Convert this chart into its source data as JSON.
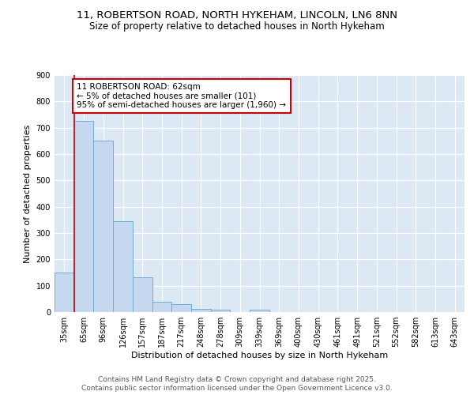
{
  "title_line1": "11, ROBERTSON ROAD, NORTH HYKEHAM, LINCOLN, LN6 8NN",
  "title_line2": "Size of property relative to detached houses in North Hykeham",
  "xlabel": "Distribution of detached houses by size in North Hykeham",
  "ylabel": "Number of detached properties",
  "bar_labels": [
    "35sqm",
    "65sqm",
    "96sqm",
    "126sqm",
    "157sqm",
    "187sqm",
    "217sqm",
    "248sqm",
    "278sqm",
    "309sqm",
    "339sqm",
    "369sqm",
    "400sqm",
    "430sqm",
    "461sqm",
    "491sqm",
    "521sqm",
    "552sqm",
    "582sqm",
    "613sqm",
    "643sqm"
  ],
  "bar_values": [
    150,
    725,
    650,
    345,
    133,
    40,
    30,
    12,
    8,
    0,
    8,
    0,
    0,
    0,
    0,
    0,
    0,
    0,
    0,
    0,
    0
  ],
  "bar_color": "#c5d8f0",
  "bar_edge_color": "#6baed6",
  "annotation_line1": "11 ROBERTSON ROAD: 62sqm",
  "annotation_line2": "← 5% of detached houses are smaller (101)",
  "annotation_line3": "95% of semi-detached houses are larger (1,960) →",
  "annotation_box_facecolor": "#ffffff",
  "annotation_box_edgecolor": "#cc0000",
  "red_line_color": "#cc0000",
  "ylim": [
    0,
    900
  ],
  "yticks": [
    0,
    100,
    200,
    300,
    400,
    500,
    600,
    700,
    800,
    900
  ],
  "fig_bg_color": "#ffffff",
  "plot_bg_color": "#dde8f5",
  "footer_line1": "Contains HM Land Registry data © Crown copyright and database right 2025.",
  "footer_line2": "Contains public sector information licensed under the Open Government Licence v3.0.",
  "title_fontsize": 9.5,
  "subtitle_fontsize": 8.5,
  "axis_label_fontsize": 8,
  "tick_fontsize": 7,
  "footer_fontsize": 6.5,
  "annotation_fontsize": 7.5
}
